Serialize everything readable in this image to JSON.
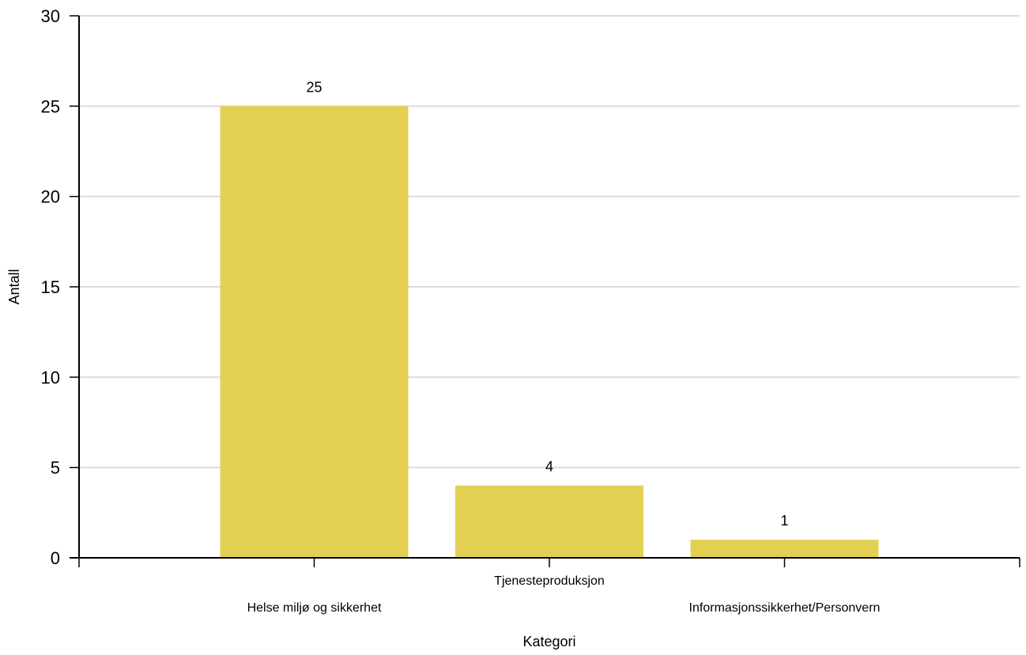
{
  "chart_data": {
    "type": "bar",
    "categories": [
      "Helse miljø og sikkerhet",
      "Tjenesteproduksjon",
      "Informasjonssikkerhet/Personvern"
    ],
    "values": [
      25,
      4,
      1
    ],
    "data_labels": [
      "25",
      "4",
      "1"
    ],
    "xlabel": "Kategori",
    "ylabel": "Antall",
    "ylim": [
      0,
      30
    ],
    "yticks": [
      0,
      5,
      10,
      15,
      20,
      25,
      30
    ],
    "grid": true,
    "bar_color": "#e3d053"
  }
}
